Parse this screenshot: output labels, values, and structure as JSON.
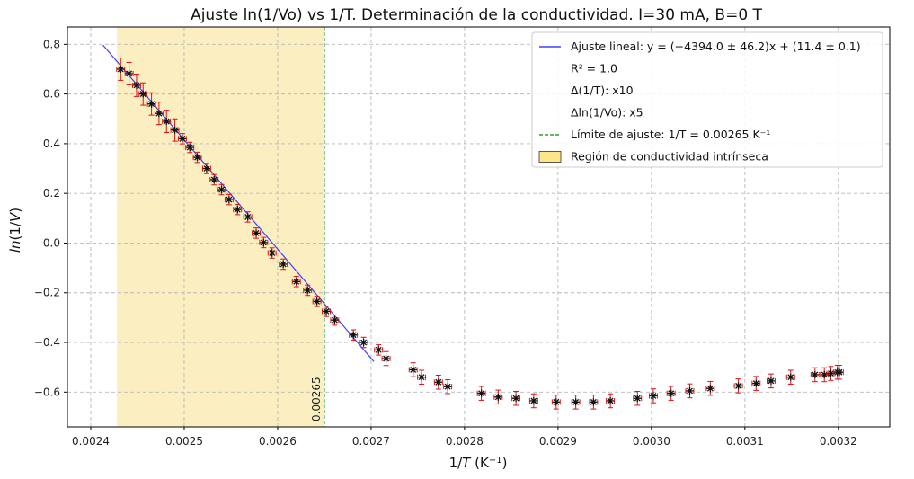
{
  "chart_data": {
    "type": "scatter",
    "title": "Ajuste ln(1/Vo) vs 1/T. Determinación de la conductividad. I=30 mA, B=0 T",
    "xlabel": "1/T (K⁻¹)",
    "ylabel": "ln(1/V)",
    "xlim": [
      0.002375,
      0.003255
    ],
    "ylim": [
      -0.74,
      0.87
    ],
    "grid": true,
    "legend_position": "top-right",
    "x_ticks": [
      0.0024,
      0.0025,
      0.0026,
      0.0027,
      0.0028,
      0.0029,
      0.003,
      0.0031,
      0.0032
    ],
    "x_tick_labels": [
      "0.0024",
      "0.0025",
      "0.0026",
      "0.0027",
      "0.0028",
      "0.0029",
      "0.0030",
      "0.0031",
      "0.0032"
    ],
    "y_ticks": [
      -0.6,
      -0.4,
      -0.2,
      0.0,
      0.2,
      0.4,
      0.6,
      0.8
    ],
    "y_tick_labels": [
      "−0.6",
      "−0.4",
      "−0.2",
      "0.0",
      "0.2",
      "0.4",
      "0.6",
      "0.8"
    ],
    "intrinsic_region": {
      "x_start": 0.002428,
      "x_end": 0.00265,
      "label": "Región de conductividad intrínseca",
      "color": "#fbeec0"
    },
    "fit_limit": {
      "x": 0.00265,
      "annotation": "0.00265",
      "label": "Límite de ajuste: 1/T = 0.00265 K⁻¹",
      "color": "#2ca02c"
    },
    "fit_line": {
      "label": "Ajuste lineal: y = (−4394.0 ± 46.2)x + (11.4 ± 0.1)",
      "slope": -4394.0,
      "intercept": 11.4,
      "x_range": [
        0.002413,
        0.002703
      ],
      "color": "#4040ff"
    },
    "legend_extra": [
      "R² = 1.0",
      "Δ(1/T): x10",
      "Δln(1/Vo): x5"
    ],
    "marker_color": "#111111",
    "errorbar_color": "#dd1111",
    "x_err": 4.3e-06,
    "y_err_near_zero": 0.0208,
    "y_err_far": 0.028,
    "points": {
      "x": [
        0.002432,
        0.002441,
        0.002449,
        0.002456,
        0.002465,
        0.002473,
        0.002481,
        0.00249,
        0.002498,
        0.002506,
        0.002514,
        0.002524,
        0.002532,
        0.00254,
        0.002548,
        0.002557,
        0.002568,
        0.002577,
        0.002585,
        0.002594,
        0.002606,
        0.00262,
        0.002632,
        0.002642,
        0.002652,
        0.002661,
        0.002681,
        0.002692,
        0.002708,
        0.002716,
        0.002745,
        0.002754,
        0.002772,
        0.002782,
        0.002818,
        0.002836,
        0.002855,
        0.002874,
        0.002898,
        0.002919,
        0.002938,
        0.002956,
        0.002985,
        0.003002,
        0.003021,
        0.003041,
        0.003063,
        0.003093,
        0.003112,
        0.003128,
        0.003149,
        0.003175,
        0.003185,
        0.003192,
        0.003199,
        0.003201
      ],
      "y": [
        0.7,
        0.682,
        0.635,
        0.6,
        0.56,
        0.522,
        0.49,
        0.455,
        0.42,
        0.385,
        0.345,
        0.3,
        0.255,
        0.215,
        0.175,
        0.135,
        0.105,
        0.04,
        0.002,
        -0.04,
        -0.085,
        -0.155,
        -0.19,
        -0.235,
        -0.275,
        -0.31,
        -0.37,
        -0.4,
        -0.43,
        -0.465,
        -0.51,
        -0.54,
        -0.56,
        -0.578,
        -0.605,
        -0.62,
        -0.625,
        -0.635,
        -0.64,
        -0.64,
        -0.64,
        -0.635,
        -0.625,
        -0.615,
        -0.605,
        -0.595,
        -0.585,
        -0.575,
        -0.565,
        -0.555,
        -0.54,
        -0.53,
        -0.53,
        -0.525,
        -0.52,
        -0.52
      ]
    }
  }
}
